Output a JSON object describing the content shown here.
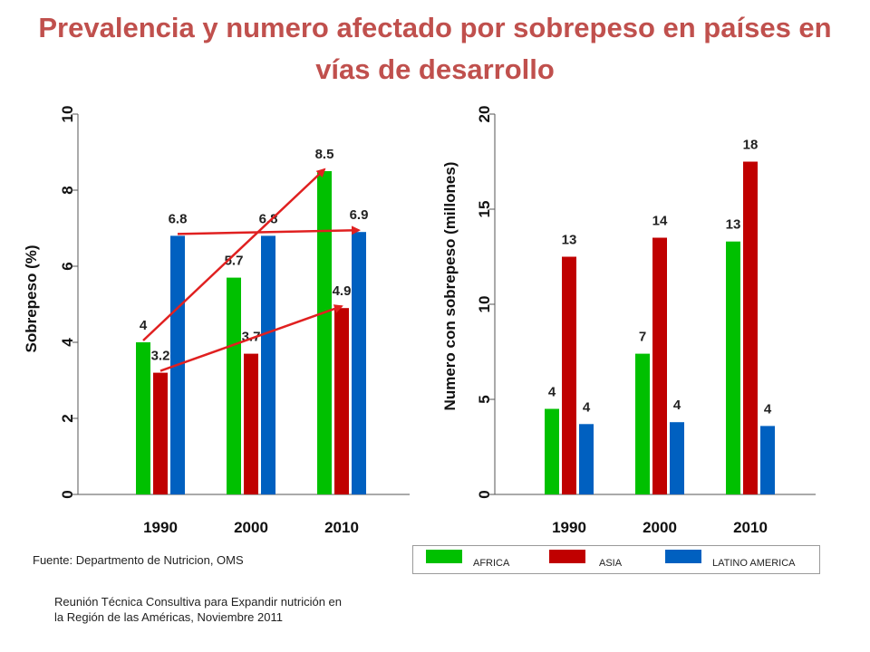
{
  "title": "Prevalencia y numero afectado por sobrepeso en países en vías de desarrollo",
  "source": "Fuente: Departmento de Nutricion, OMS",
  "note": "Reunión Técnica Consultiva para Expandir nutrición en la Región de las Américas, Noviembre 2011",
  "legend": [
    {
      "label": "AFRICA",
      "color": "#00c000"
    },
    {
      "label": "ASIA",
      "color": "#c00000"
    },
    {
      "label": "LATINO AMERICA",
      "color": "#0060c0"
    }
  ],
  "chart_data": [
    {
      "type": "bar",
      "categories": [
        "1990",
        "2000",
        "2010"
      ],
      "ylabel": "Sobrepeso (%)",
      "ylim": [
        0,
        10
      ],
      "yticks": [
        "0",
        "2",
        "4",
        "6",
        "8",
        "10"
      ],
      "series": [
        {
          "name": "AFRICA",
          "color": "#00c000",
          "values": [
            4,
            5.7,
            8.5
          ],
          "labels": [
            "4",
            "5.7",
            "8.5"
          ]
        },
        {
          "name": "ASIA",
          "color": "#c00000",
          "values": [
            3.2,
            3.7,
            4.9
          ],
          "labels": [
            "3.2",
            "3.7",
            "4.9"
          ]
        },
        {
          "name": "LATINO AMERICA",
          "color": "#0060c0",
          "values": [
            6.8,
            6.8,
            6.9
          ],
          "labels": [
            "6.8",
            "6.8",
            "6.9"
          ]
        }
      ],
      "trend_arrows": true
    },
    {
      "type": "bar",
      "categories": [
        "1990",
        "2000",
        "2010"
      ],
      "ylabel": "Numero con sobrepeso (millones)",
      "ylim": [
        0,
        20
      ],
      "yticks": [
        "0",
        "5",
        "10",
        "15",
        "20"
      ],
      "series": [
        {
          "name": "AFRICA",
          "color": "#00c000",
          "values": [
            4.5,
            7.4,
            13.3
          ],
          "labels": [
            "4",
            "7",
            "13"
          ]
        },
        {
          "name": "ASIA",
          "color": "#c00000",
          "values": [
            12.5,
            13.5,
            17.5
          ],
          "labels": [
            "13",
            "14",
            "18"
          ]
        },
        {
          "name": "LATINO AMERICA",
          "color": "#0060c0",
          "values": [
            3.7,
            3.8,
            3.6
          ],
          "labels": [
            "4",
            "4",
            "4"
          ]
        }
      ]
    }
  ]
}
